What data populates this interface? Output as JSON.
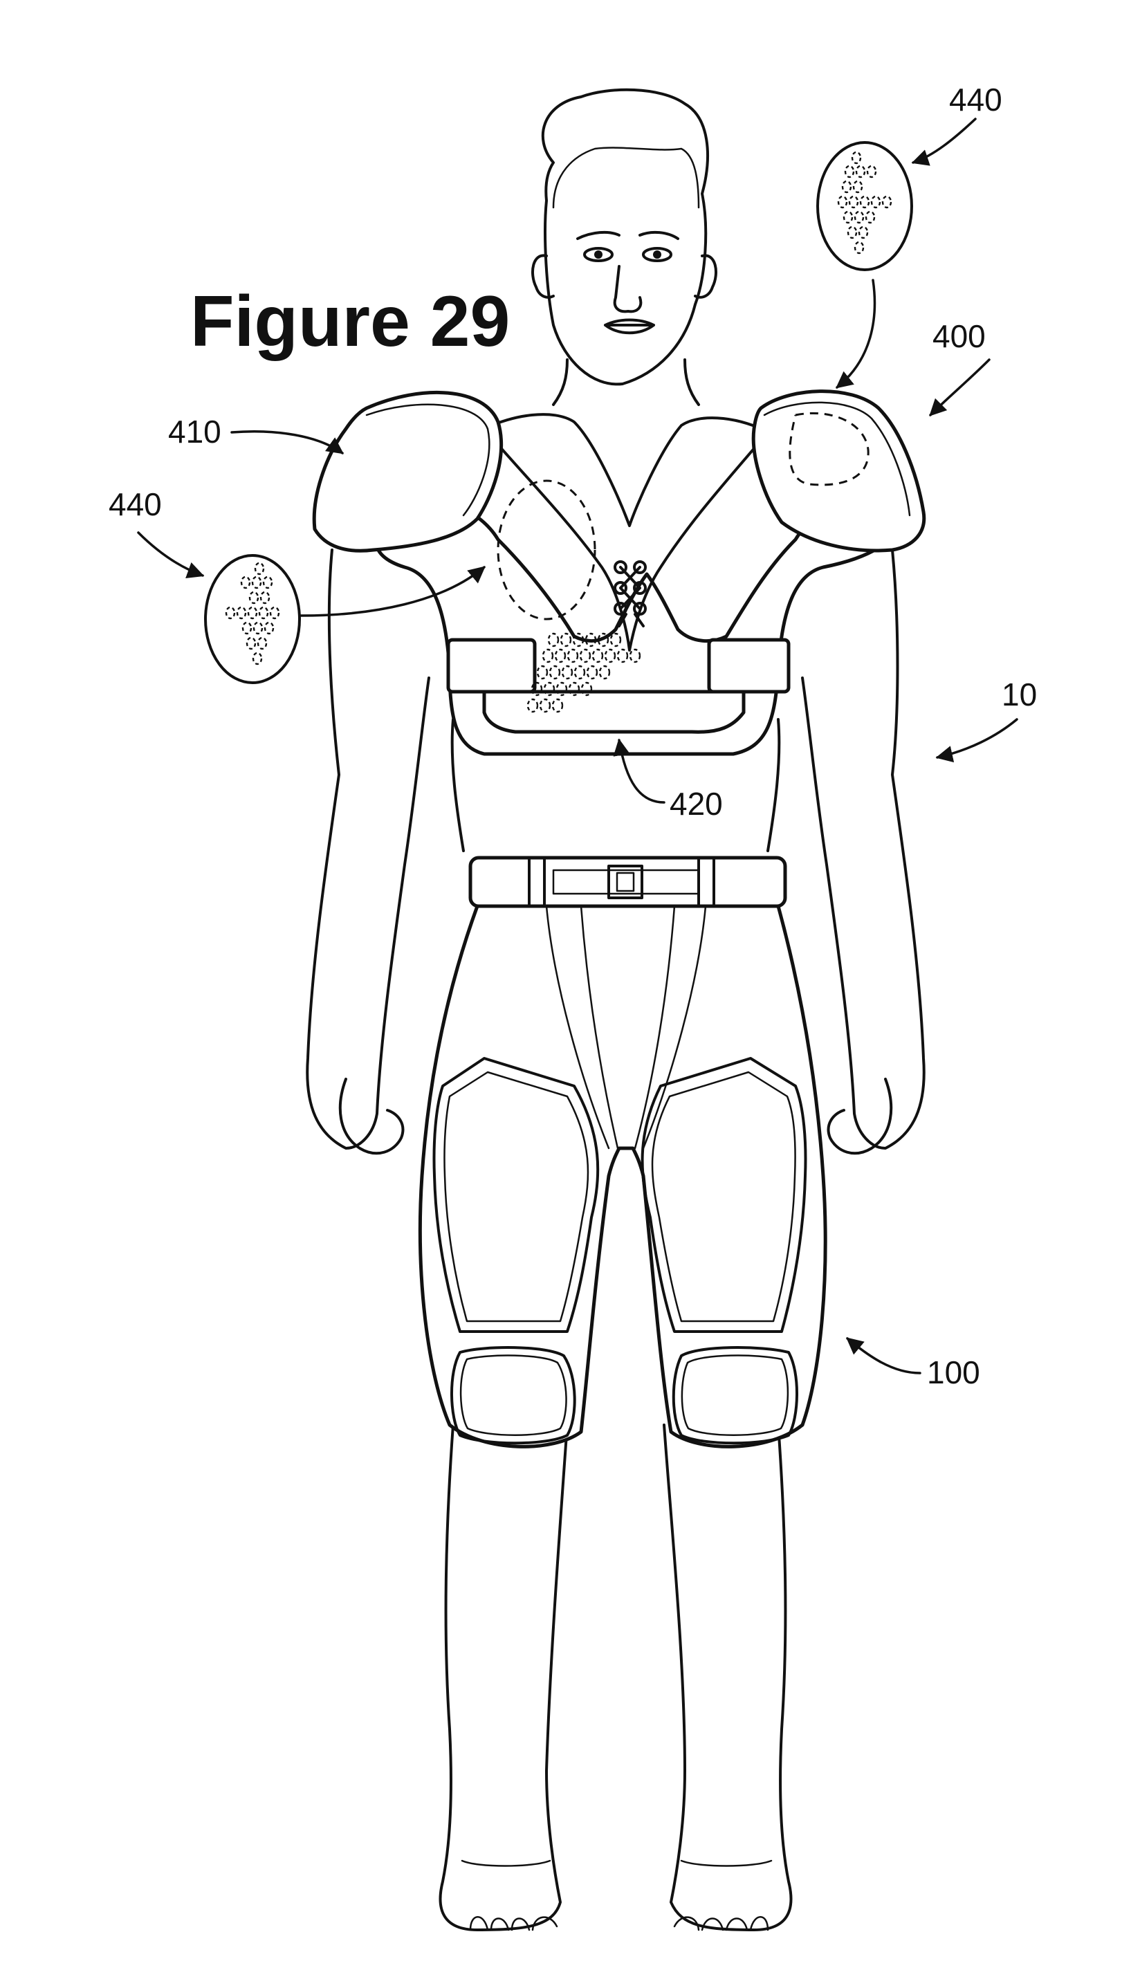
{
  "figure": {
    "title": "Figure 29",
    "labels": {
      "ref_440_top": "440",
      "ref_400": "400",
      "ref_410": "410",
      "ref_440_left": "440",
      "ref_10": "10",
      "ref_420": "420",
      "ref_100": "100"
    }
  }
}
